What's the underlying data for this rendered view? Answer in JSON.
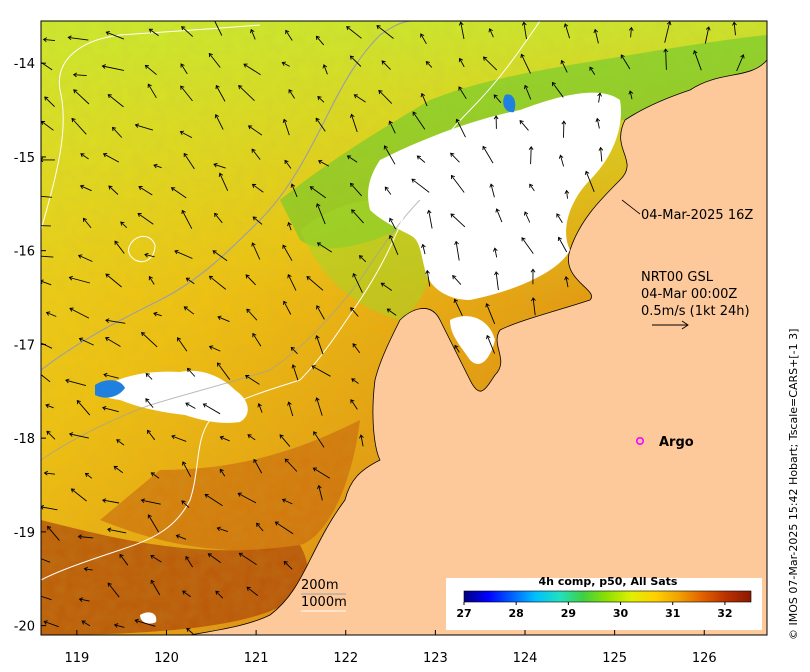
{
  "map": {
    "lon_ticks": [
      "119",
      "120",
      "121",
      "122",
      "123",
      "124",
      "125",
      "126"
    ],
    "lat_ticks": [
      "-14",
      "-15",
      "-16",
      "-17",
      "-18",
      "-19",
      "-20"
    ],
    "lon_range": [
      118.6,
      126.7
    ],
    "lat_range": [
      -20.1,
      -13.55
    ],
    "colors": {
      "land": "#fdc89a",
      "cloud": "#ffffff",
      "isobath_shallow": "#a0a0a0",
      "isobath_deep": "#ffffff"
    }
  },
  "annotations": {
    "time_label": "04-Mar-2025 16Z",
    "current_source": "NRT00 GSL",
    "current_time": "04-Mar 00:00Z",
    "current_scale": "0.5m/s (1kt 24h)",
    "argo_label": "Argo"
  },
  "legend": {
    "isobath_200": "200m",
    "isobath_1000": "1000m"
  },
  "colorbar": {
    "title": "4h comp, p50, All Sats",
    "ticks": [
      "27",
      "28",
      "29",
      "30",
      "31",
      "32"
    ],
    "range": [
      27,
      32.5
    ],
    "stops": [
      "#00007f",
      "#0000ff",
      "#0060ff",
      "#00c0ff",
      "#20e0c0",
      "#40d040",
      "#90e000",
      "#e0f000",
      "#ffd000",
      "#f0a000",
      "#e06000",
      "#b83000",
      "#8b1a00"
    ]
  },
  "credit": "© IMOS 07-Mar-2025 15:42 Hobart; Tscale=CARS+[-1 3]"
}
